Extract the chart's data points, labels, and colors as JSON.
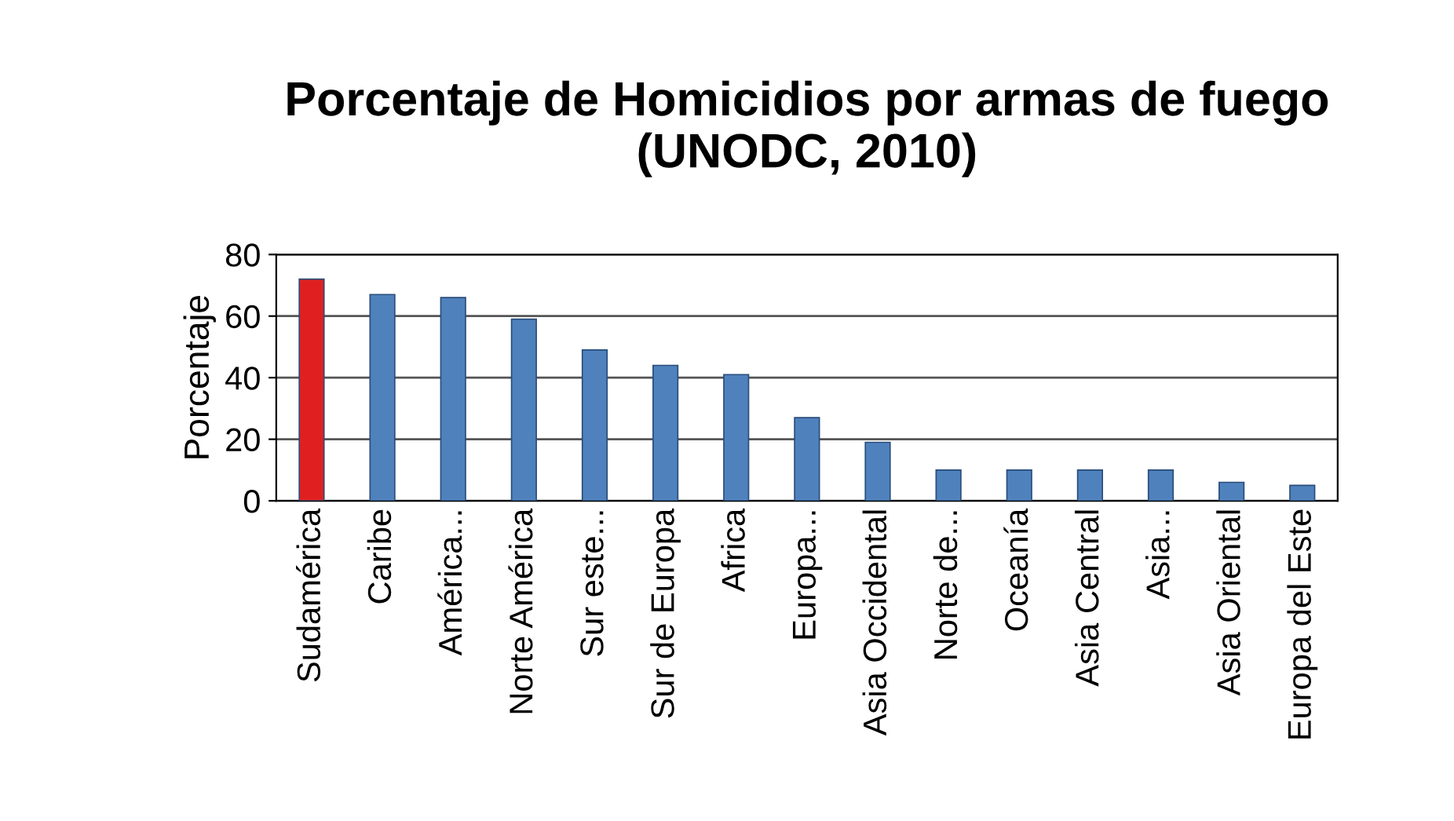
{
  "chart_data": {
    "type": "bar",
    "title": "Porcentaje de Homicidios por armas de fuego\n(UNODC, 2010)",
    "ylabel": "Porcentaje",
    "categories": [
      "Sudamérica",
      "Caribe",
      "América...",
      "Norte América",
      "Sur este...",
      "Sur de Europa",
      "Africa",
      "Europa...",
      "Asia Occidental",
      "Norte de...",
      "Oceanía",
      "Asia Central",
      "Asia...",
      "Asia Oriental",
      "Europa del Este"
    ],
    "values": [
      72,
      67,
      66,
      59,
      49,
      44,
      41,
      27,
      19,
      10,
      10,
      10,
      10,
      6,
      5
    ],
    "colors": [
      "#e02020",
      "#4f81bd",
      "#4f81bd",
      "#4f81bd",
      "#4f81bd",
      "#4f81bd",
      "#4f81bd",
      "#4f81bd",
      "#4f81bd",
      "#4f81bd",
      "#4f81bd",
      "#4f81bd",
      "#4f81bd",
      "#4f81bd",
      "#4f81bd"
    ],
    "ylim": [
      0,
      80
    ],
    "yticks": [
      0,
      20,
      40,
      60,
      80
    ],
    "grid": "y",
    "legend": false
  }
}
